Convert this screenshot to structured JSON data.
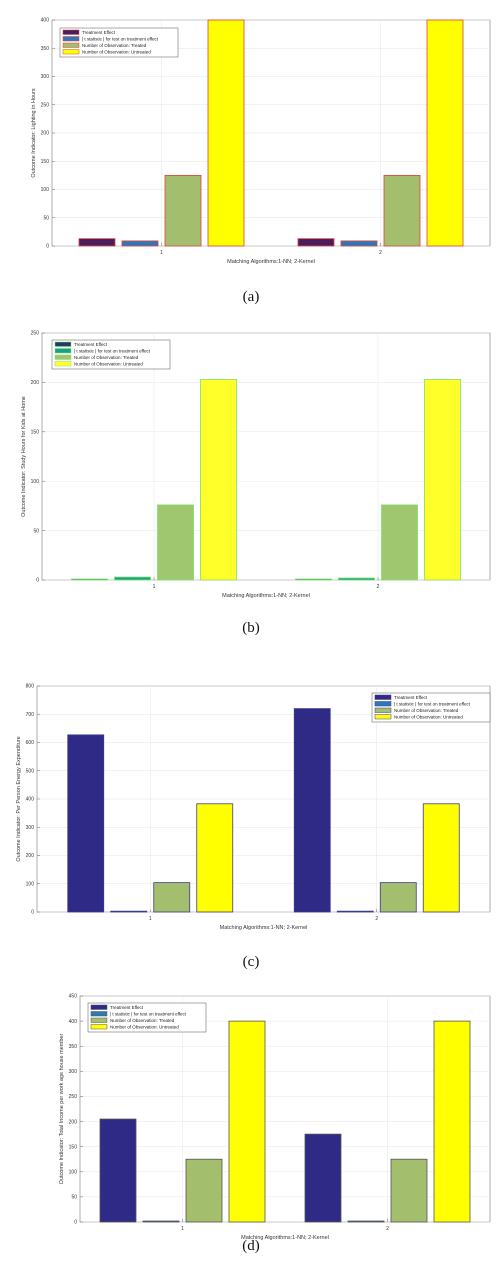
{
  "charts": [
    {
      "caption": "(a)",
      "chart_data": {
        "type": "bar",
        "categories": [
          "1",
          "2"
        ],
        "xlabel": "Matching Algorithms:1-NN; 2-Kernel",
        "ylabel": "Outcome Indicator: Lighting in Hours",
        "ylim": [
          0,
          400
        ],
        "yticks": [
          0,
          50,
          100,
          150,
          200,
          250,
          300,
          350,
          400
        ],
        "grid": true,
        "legend_position": "top-left",
        "series": [
          {
            "name": "Treatment Effect",
            "color": "#4b1c5e",
            "values": [
              13,
              13
            ]
          },
          {
            "name": "| t statistic | for test on treatment effect",
            "color": "#2f78b8",
            "values": [
              9,
              9
            ]
          },
          {
            "name": "Number of Observation: Treated",
            "color": "#a3bf6e",
            "values": [
              125,
              125
            ]
          },
          {
            "name": "Number of Observation: Untreated",
            "color": "#ffff00",
            "values": [
              400,
              400
            ]
          }
        ],
        "edge_color": "#e04040"
      }
    },
    {
      "caption": "(b)",
      "chart_data": {
        "type": "bar",
        "categories": [
          "1",
          "2"
        ],
        "xlabel": "Matching Algorithms:1-NN; 2-Kernel",
        "ylabel": "Outcome Indicator: Study Hours for Kids at Home",
        "ylim": [
          0,
          250
        ],
        "yticks": [
          0,
          50,
          100,
          150,
          200,
          250
        ],
        "grid": true,
        "legend_position": "top-left",
        "series": [
          {
            "name": "Treatment Effect",
            "color": "#1e3f63",
            "values": [
              1,
              1
            ]
          },
          {
            "name": "| t statistic | for test on treatment effect",
            "color": "#1aa089",
            "values": [
              3,
              2
            ]
          },
          {
            "name": "Number of Observation: Treated",
            "color": "#9ec76f",
            "values": [
              76,
              76
            ]
          },
          {
            "name": "Number of Observation: Untreated",
            "color": "#ffff2a",
            "values": [
              203,
              203
            ]
          }
        ],
        "edge_color": "#7ee06a"
      }
    },
    {
      "caption": "(c)",
      "chart_data": {
        "type": "bar",
        "categories": [
          "1",
          "2"
        ],
        "xlabel": "Matching Algorithms:1-NN; 2-Kernel",
        "ylabel": "Outcome Indicator: Per Person Energy Expenditure",
        "ylim": [
          0,
          800
        ],
        "yticks": [
          0,
          100,
          200,
          300,
          400,
          500,
          600,
          700,
          800
        ],
        "grid": true,
        "legend_position": "top-right",
        "series": [
          {
            "name": "Treatment Effect",
            "color": "#2e2a86",
            "values": [
              627,
              720
            ]
          },
          {
            "name": "| t statistic | for test on treatment effect",
            "color": "#2f78b8",
            "values": [
              3,
              3
            ]
          },
          {
            "name": "Number of Observation: Treated",
            "color": "#a3bf6e",
            "values": [
              104,
              104
            ]
          },
          {
            "name": "Number of Observation: Untreated",
            "color": "#ffff00",
            "values": [
              383,
              383
            ]
          }
        ],
        "edge_color": "#3a3a90"
      }
    },
    {
      "caption": "(d)",
      "chart_data": {
        "type": "bar",
        "categories": [
          "1",
          "2"
        ],
        "xlabel": "Matching Algorithms:1-NN; 2-Kernel",
        "ylabel": "Outcome Indicator: Total Income per work age house member",
        "ylim": [
          0,
          450
        ],
        "yticks": [
          0,
          50,
          100,
          150,
          200,
          250,
          300,
          350,
          400,
          450
        ],
        "grid": true,
        "legend_position": "top-left",
        "series": [
          {
            "name": "Treatment Effect",
            "color": "#2e2a86",
            "values": [
              205,
              175
            ]
          },
          {
            "name": "| t statistic | for test on treatment effect",
            "color": "#2f78b8",
            "values": [
              2,
              2
            ]
          },
          {
            "name": "Number of Observation: Treated",
            "color": "#a3bf6e",
            "values": [
              125,
              125
            ]
          },
          {
            "name": "Number of Observation: Untreated",
            "color": "#ffff00",
            "values": [
              400,
              400
            ]
          }
        ],
        "edge_color": "#555555"
      }
    }
  ]
}
